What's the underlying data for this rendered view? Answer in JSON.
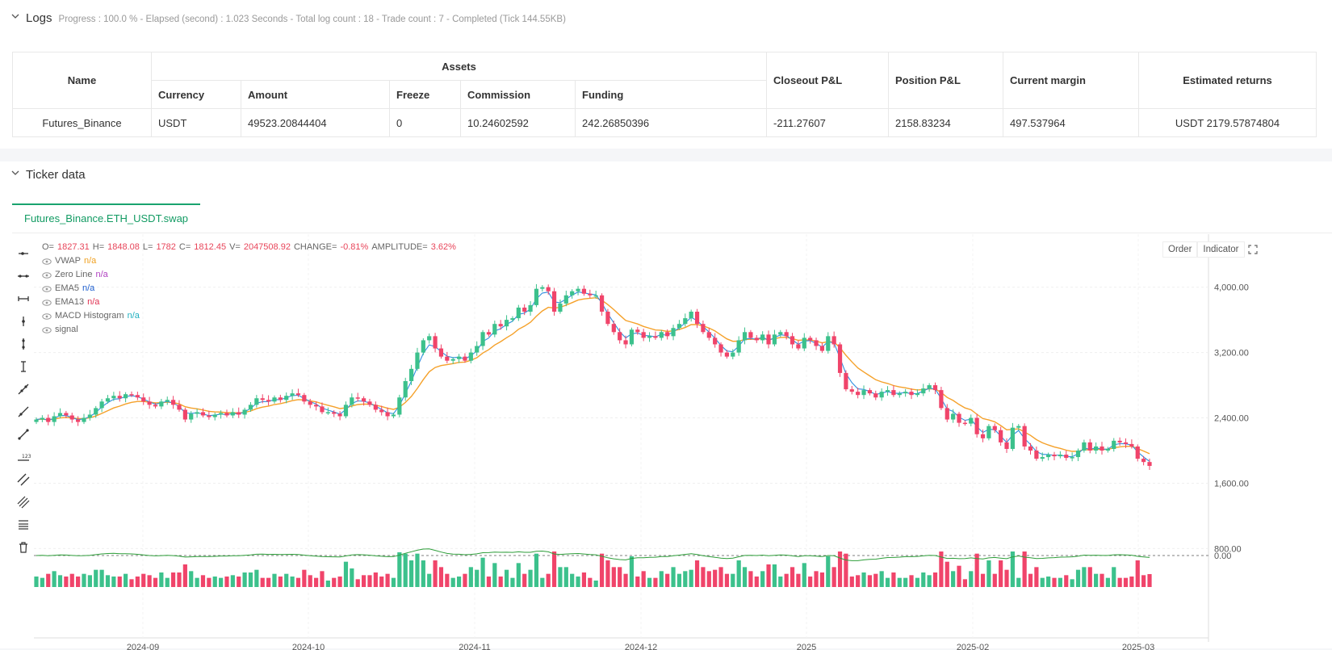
{
  "logs": {
    "title": "Logs",
    "subtitle": "Progress : 100.0 % - Elapsed (second) : 1.023 Seconds - Total log count : 18 - Trade count : 7 - Completed (Tick 144.55KB)"
  },
  "table": {
    "headers": {
      "name": "Name",
      "assets": "Assets",
      "currency": "Currency",
      "amount": "Amount",
      "freeze": "Freeze",
      "commission": "Commission",
      "funding": "Funding",
      "closeout": "Closeout P&L",
      "position": "Position P&L",
      "margin": "Current margin",
      "returns": "Estimated returns"
    },
    "row": {
      "name": "Futures_Binance",
      "currency": "USDT",
      "amount": "49523.20844404",
      "freeze": "0",
      "commission": "10.24602592",
      "funding": "242.26850396",
      "closeout": "-211.27607",
      "position": "2158.83234",
      "margin": "497.537964",
      "returns": "USDT 2179.57874804"
    }
  },
  "ticker": {
    "title": "Ticker data",
    "tab": "Futures_Binance.ETH_USDT.swap",
    "buttons": {
      "order": "Order",
      "indicator": "Indicator"
    }
  },
  "legend": {
    "ohlc": {
      "o_label": "O=",
      "o": "1827.31",
      "h_label": "H=",
      "h": "1848.08",
      "l_label": "L=",
      "l": "1782",
      "c_label": "C=",
      "c": "1812.45",
      "v_label": "V=",
      "v": "2047508.92",
      "change_label": "CHANGE=",
      "change": "-0.81%",
      "amp_label": "AMPLITUDE=",
      "amp": "3.62%"
    },
    "series": [
      {
        "name": "VWAP",
        "value": "n/a",
        "color": "#f0a020"
      },
      {
        "name": "Zero Line",
        "value": "n/a",
        "color": "#b040c0"
      },
      {
        "name": "EMA5",
        "value": "n/a",
        "color": "#2060d0"
      },
      {
        "name": "EMA13",
        "value": "n/a",
        "color": "#e03050"
      },
      {
        "name": "MACD Histogram",
        "value": "n/a",
        "color": "#20b0c0"
      },
      {
        "name": "signal",
        "value": "",
        "color": "#333"
      }
    ]
  },
  "colors": {
    "up": "#3cc18c",
    "down": "#f0446a",
    "ema_fast": "#2f8ee0",
    "ema_slow": "#f5a12a",
    "macd": "#2e9e3a",
    "accent": "#1aa36f"
  },
  "chart_data": {
    "type": "candlestick",
    "x_ticks": [
      "2024-09",
      "2024-10",
      "2024-11",
      "2024-12",
      "2025",
      "2025-02",
      "2025-03"
    ],
    "y_ticks": [
      "4,000.00",
      "3,200.00",
      "2,400.00",
      "1,600.00",
      "800.00"
    ],
    "y_ticks_values": [
      4000,
      3200,
      2400,
      1600,
      800
    ],
    "indicator_y_tick": "0.00",
    "ylim": [
      300,
      4550
    ],
    "close": [
      2380,
      2400,
      2350,
      2420,
      2460,
      2430,
      2380,
      2350,
      2400,
      2440,
      2520,
      2600,
      2640,
      2670,
      2640,
      2690,
      2680,
      2650,
      2600,
      2560,
      2540,
      2600,
      2620,
      2560,
      2500,
      2380,
      2450,
      2470,
      2430,
      2410,
      2440,
      2460,
      2430,
      2470,
      2440,
      2500,
      2560,
      2640,
      2620,
      2600,
      2650,
      2620,
      2670,
      2700,
      2680,
      2600,
      2560,
      2540,
      2470,
      2470,
      2450,
      2420,
      2560,
      2650,
      2640,
      2600,
      2560,
      2500,
      2470,
      2420,
      2440,
      2650,
      2850,
      3000,
      3200,
      3350,
      3400,
      3250,
      3150,
      3100,
      3120,
      3150,
      3100,
      3200,
      3280,
      3450,
      3420,
      3550,
      3520,
      3600,
      3620,
      3750,
      3700,
      3780,
      3980,
      4000,
      3950,
      3700,
      3800,
      3900,
      3950,
      3980,
      3920,
      3900,
      3900,
      3700,
      3550,
      3450,
      3350,
      3300,
      3480,
      3450,
      3380,
      3400,
      3380,
      3450,
      3400,
      3500,
      3550,
      3620,
      3700,
      3550,
      3450,
      3380,
      3300,
      3200,
      3150,
      3200,
      3350,
      3450,
      3380,
      3350,
      3420,
      3300,
      3420,
      3450,
      3400,
      3300,
      3250,
      3380,
      3350,
      3280,
      3220,
      3400,
      3300,
      2950,
      2750,
      2720,
      2680,
      2740,
      2700,
      2650,
      2720,
      2740,
      2680,
      2700,
      2720,
      2680,
      2700,
      2760,
      2800,
      2740,
      2520,
      2380,
      2450,
      2340,
      2330,
      2400,
      2200,
      2150,
      2300,
      2250,
      2100,
      2020,
      2280,
      2300,
      2050,
      2000,
      1900,
      1920,
      1950,
      1930,
      1950,
      1910,
      1920,
      2000,
      2100,
      2000,
      2050,
      2000,
      2020,
      2120,
      2100,
      2080,
      2050,
      1900,
      1860,
      1812
    ]
  }
}
